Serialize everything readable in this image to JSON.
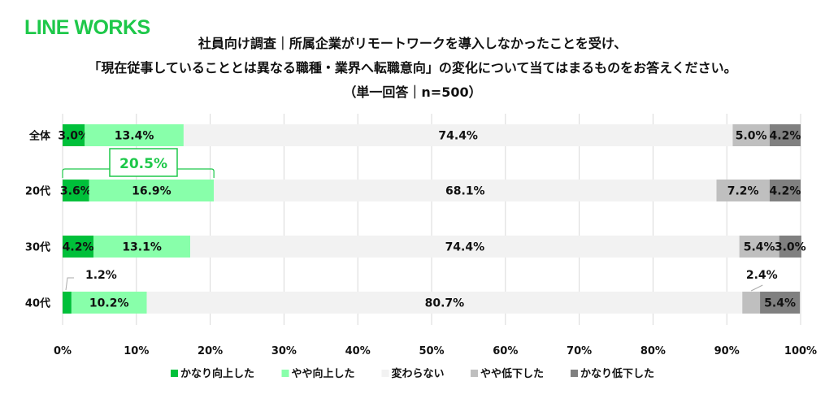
{
  "brand": "LINE WORKS",
  "chart_data": {
    "type": "bar",
    "orientation": "horizontal",
    "stacked": true,
    "title_lines": [
      "社員向け調査｜所属企業がリモートワークを導入しなかったことを受け、",
      "「現在従事していることとは異なる職種・業界へ転職意向」の変化について当てはまるものをお答えください。",
      "（単一回答｜n=500）"
    ],
    "categories": [
      "全体",
      "20代",
      "30代",
      "40代"
    ],
    "series": [
      {
        "name": "かなり向上した",
        "color": "#00c03a",
        "values": [
          3.0,
          3.6,
          4.2,
          1.2
        ]
      },
      {
        "name": "やや向上した",
        "color": "#88ffaa",
        "values": [
          13.4,
          16.9,
          13.1,
          10.2
        ]
      },
      {
        "name": "変わらない",
        "color": "#f2f2f2",
        "values": [
          74.4,
          68.1,
          74.4,
          80.7
        ]
      },
      {
        "name": "やや低下した",
        "color": "#bfbfbf",
        "values": [
          5.0,
          7.2,
          5.4,
          2.4
        ]
      },
      {
        "name": "かなり低下した",
        "color": "#808080",
        "values": [
          4.2,
          4.2,
          3.0,
          5.4
        ]
      }
    ],
    "xlim": [
      0,
      100
    ],
    "xticks": [
      "0%",
      "10%",
      "20%",
      "30%",
      "40%",
      "50%",
      "60%",
      "70%",
      "80%",
      "90%",
      "100%"
    ],
    "grid": true,
    "legend_position": "bottom",
    "annotation": {
      "category": "20代",
      "text": "20.5%",
      "color": "#1ec84a"
    }
  }
}
